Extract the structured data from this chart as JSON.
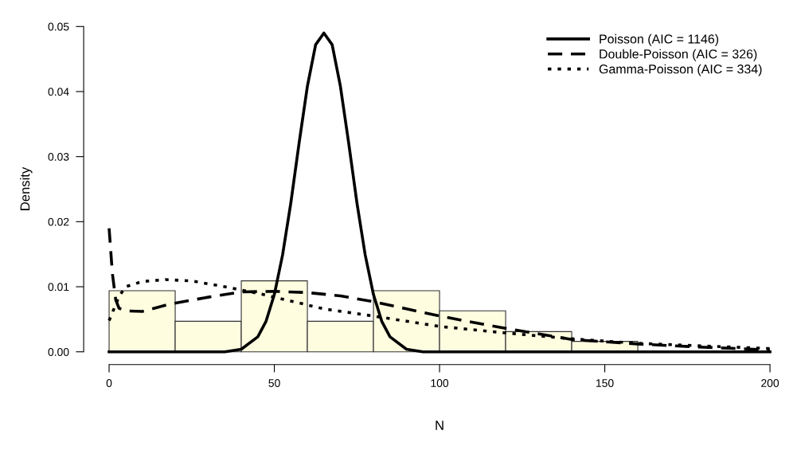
{
  "chart_data": {
    "type": "histogram",
    "xlabel": "N",
    "ylabel": "Density",
    "bins": [
      0,
      20,
      40,
      60,
      80,
      100,
      120,
      140,
      160,
      180,
      200
    ],
    "values": [
      0.0094,
      0.0047,
      0.0109,
      0.0047,
      0.0094,
      0.0063,
      0.0031,
      0.0016,
      0,
      0
    ],
    "color": "#fffde0",
    "series": [
      {
        "type": "line",
        "name": "Poisson (AIC = 1146)",
        "color": "#000000",
        "line_style": "solid",
        "x": [
          0,
          35,
          40,
          45,
          47.5,
          50,
          52.5,
          55,
          57.5,
          60,
          62.5,
          65,
          67.5,
          70,
          72.5,
          75,
          77.5,
          80,
          82.5,
          85,
          90,
          95,
          200
        ],
        "values": [
          0,
          0,
          0.0004,
          0.0023,
          0.0047,
          0.0088,
          0.0149,
          0.0229,
          0.0321,
          0.0408,
          0.0472,
          0.049,
          0.0472,
          0.0408,
          0.0321,
          0.0229,
          0.0149,
          0.0088,
          0.0047,
          0.0023,
          0.0004,
          0,
          0
        ]
      },
      {
        "type": "line",
        "name": "Double-Poisson (AIC = 326)",
        "color": "#000000",
        "line_style": "dashed",
        "x": [
          0,
          1,
          2,
          3,
          5,
          10,
          18,
          30,
          40,
          50,
          60,
          70,
          80,
          90,
          100,
          120,
          140,
          160,
          180,
          200
        ],
        "values": [
          0.019,
          0.012,
          0.008,
          0.0067,
          0.0063,
          0.0062,
          0.0073,
          0.0084,
          0.0092,
          0.0093,
          0.0091,
          0.0086,
          0.0077,
          0.0066,
          0.0055,
          0.0036,
          0.0019,
          0.0012,
          0.0007,
          0.0003
        ]
      },
      {
        "type": "line",
        "name": "Gamma-Poisson (AIC = 334)",
        "color": "#000000",
        "line_style": "dotted",
        "x": [
          0,
          3,
          5,
          10,
          17,
          25,
          35,
          45,
          55,
          65,
          80,
          100,
          120,
          140,
          160,
          180,
          200
        ],
        "values": [
          0.0048,
          0.0085,
          0.01,
          0.0108,
          0.0111,
          0.0109,
          0.01,
          0.009,
          0.0078,
          0.0066,
          0.0055,
          0.0039,
          0.0029,
          0.002,
          0.0013,
          0.0009,
          0.0005
        ]
      }
    ],
    "xlim": [
      0,
      200
    ],
    "ylim": [
      0,
      0.05
    ],
    "xticks": [
      0,
      50,
      100,
      150,
      200
    ],
    "yticks": [
      {
        "value": 0,
        "label": "0.00"
      },
      {
        "value": 0.01,
        "label": "0.01"
      },
      {
        "value": 0.02,
        "label": "0.02"
      },
      {
        "value": 0.03,
        "label": "0.03"
      },
      {
        "value": 0.04,
        "label": "0.04"
      },
      {
        "value": 0.05,
        "label": "0.05"
      }
    ],
    "legend": "top right",
    "grid": false
  }
}
